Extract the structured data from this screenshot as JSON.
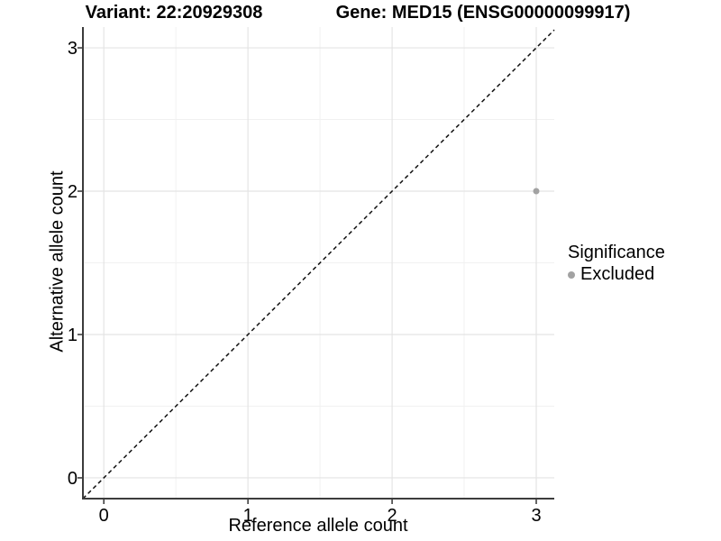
{
  "chart_data": {
    "type": "scatter",
    "titles": [
      "Variant: 22:20929308",
      "Gene: MED15 (ENSG00000099917)"
    ],
    "xlabel": "Reference allele count",
    "ylabel": "Alternative allele count",
    "x_ticks": [
      0,
      1,
      2,
      3
    ],
    "y_ticks": [
      0,
      1,
      2,
      3
    ],
    "xlim": [
      -0.145,
      3.125
    ],
    "ylim": [
      -0.145,
      3.145
    ],
    "grid": {
      "major": true,
      "minor": true
    },
    "reference_line": {
      "type": "identity",
      "style": "dashed",
      "color": "#111111"
    },
    "series": [
      {
        "name": "Excluded",
        "color": "#a2a2a2",
        "points": [
          {
            "x": 3,
            "y": 2
          }
        ]
      }
    ],
    "legend": {
      "title": "Significance",
      "position": "right",
      "items": [
        {
          "label": "Excluded",
          "color": "#a2a2a2"
        }
      ]
    }
  }
}
